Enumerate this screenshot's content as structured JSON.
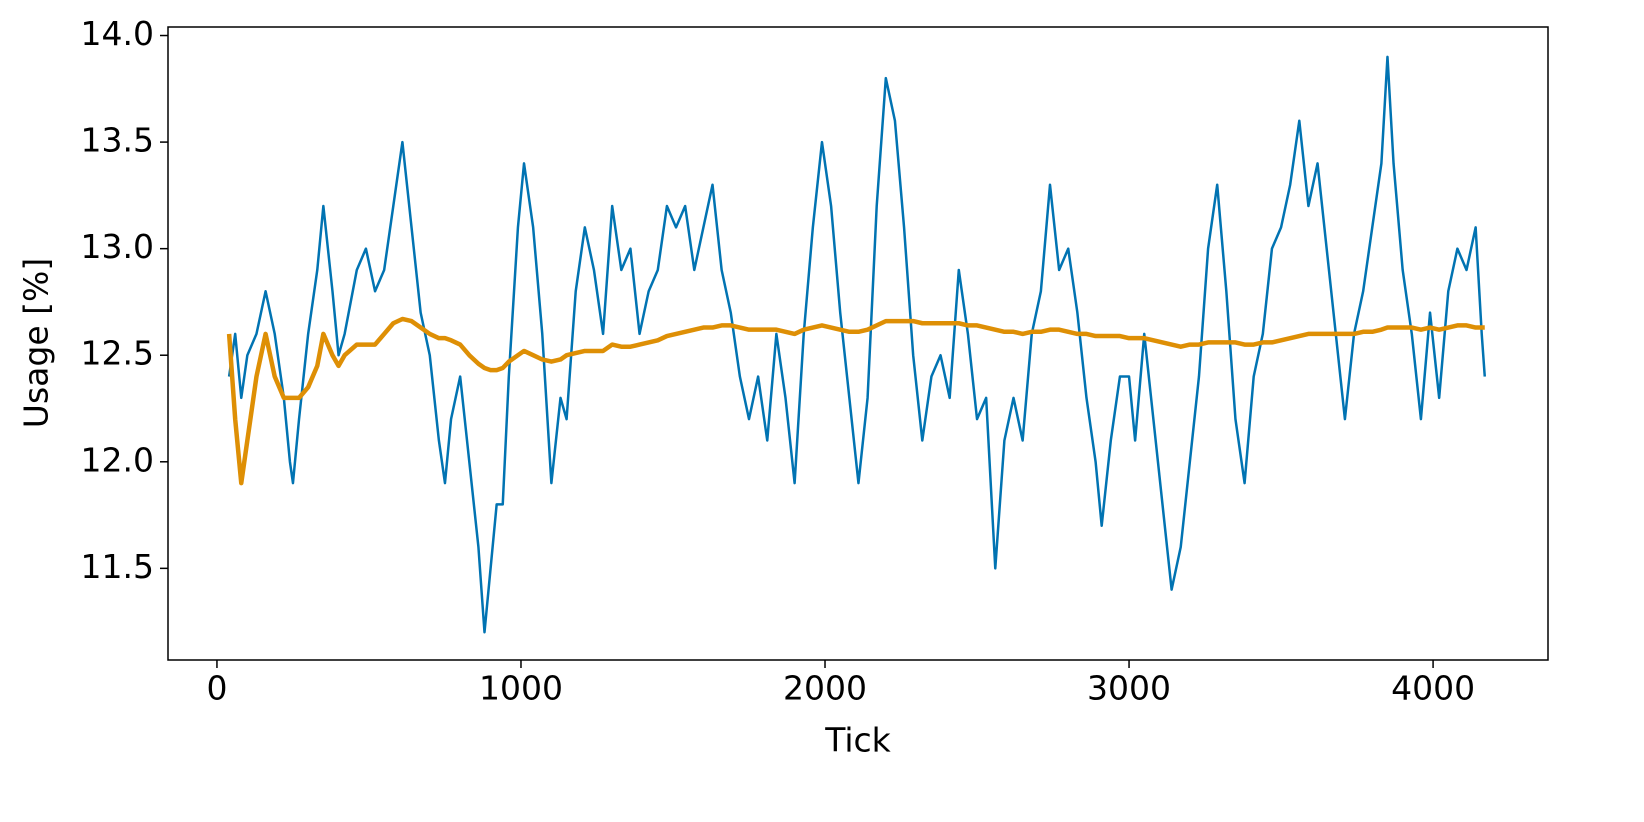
{
  "chart_data": {
    "type": "line",
    "x_label": "Tick",
    "y_label": "Usage [%]",
    "x": [
      40,
      60,
      80,
      100,
      130,
      160,
      190,
      220,
      240,
      250,
      270,
      300,
      330,
      350,
      380,
      400,
      420,
      460,
      490,
      520,
      550,
      580,
      610,
      640,
      670,
      700,
      730,
      750,
      770,
      800,
      830,
      860,
      880,
      900,
      920,
      940,
      960,
      990,
      1010,
      1040,
      1070,
      1100,
      1130,
      1150,
      1180,
      1210,
      1240,
      1270,
      1300,
      1330,
      1360,
      1390,
      1420,
      1450,
      1480,
      1510,
      1540,
      1570,
      1600,
      1630,
      1660,
      1690,
      1720,
      1750,
      1780,
      1810,
      1840,
      1870,
      1900,
      1930,
      1960,
      1990,
      2020,
      2050,
      2080,
      2110,
      2140,
      2170,
      2200,
      2230,
      2260,
      2290,
      2320,
      2350,
      2380,
      2410,
      2440,
      2470,
      2500,
      2530,
      2560,
      2590,
      2620,
      2650,
      2680,
      2710,
      2740,
      2770,
      2800,
      2830,
      2860,
      2890,
      2910,
      2940,
      2970,
      3000,
      3020,
      3050,
      3080,
      3110,
      3140,
      3170,
      3200,
      3230,
      3260,
      3290,
      3320,
      3350,
      3380,
      3410,
      3440,
      3470,
      3500,
      3530,
      3560,
      3590,
      3620,
      3650,
      3680,
      3710,
      3740,
      3770,
      3800,
      3830,
      3850,
      3870,
      3900,
      3930,
      3960,
      3990,
      4020,
      4050,
      4080,
      4110,
      4140,
      4160,
      4170
    ],
    "series": [
      {
        "color": "#0173b2",
        "width": 2.5,
        "values": [
          12.4,
          12.6,
          12.3,
          12.5,
          12.6,
          12.8,
          12.6,
          12.3,
          12.0,
          11.9,
          12.2,
          12.6,
          12.9,
          13.2,
          12.8,
          12.5,
          12.6,
          12.9,
          13.0,
          12.8,
          12.9,
          13.2,
          13.5,
          13.1,
          12.7,
          12.5,
          12.1,
          11.9,
          12.2,
          12.4,
          12.0,
          11.6,
          11.2,
          11.5,
          11.8,
          11.8,
          12.4,
          13.1,
          13.4,
          13.1,
          12.6,
          11.9,
          12.3,
          12.2,
          12.8,
          13.1,
          12.9,
          12.6,
          13.2,
          12.9,
          13.0,
          12.6,
          12.8,
          12.9,
          13.2,
          13.1,
          13.2,
          12.9,
          13.1,
          13.3,
          12.9,
          12.7,
          12.4,
          12.2,
          12.4,
          12.1,
          12.6,
          12.3,
          11.9,
          12.6,
          13.1,
          13.5,
          13.2,
          12.7,
          12.3,
          11.9,
          12.3,
          13.2,
          13.8,
          13.6,
          13.1,
          12.5,
          12.1,
          12.4,
          12.5,
          12.3,
          12.9,
          12.6,
          12.2,
          12.3,
          11.5,
          12.1,
          12.3,
          12.1,
          12.6,
          12.8,
          13.3,
          12.9,
          13.0,
          12.7,
          12.3,
          12.0,
          11.7,
          12.1,
          12.4,
          12.4,
          12.1,
          12.6,
          12.2,
          11.8,
          11.4,
          11.6,
          12.0,
          12.4,
          13.0,
          13.3,
          12.8,
          12.2,
          11.9,
          12.4,
          12.6,
          13.0,
          13.1,
          13.3,
          13.6,
          13.2,
          13.4,
          13.0,
          12.6,
          12.2,
          12.6,
          12.8,
          13.1,
          13.4,
          13.9,
          13.4,
          12.9,
          12.6,
          12.2,
          12.7,
          12.3,
          12.8,
          13.0,
          12.9,
          13.1,
          12.6,
          12.4
        ]
      },
      {
        "color": "#de8f05",
        "width": 4.5,
        "values": [
          12.6,
          12.2,
          11.9,
          12.1,
          12.4,
          12.6,
          12.4,
          12.3,
          12.3,
          12.3,
          12.3,
          12.35,
          12.45,
          12.6,
          12.5,
          12.45,
          12.5,
          12.55,
          12.55,
          12.55,
          12.6,
          12.65,
          12.67,
          12.66,
          12.63,
          12.6,
          12.58,
          12.58,
          12.57,
          12.55,
          12.5,
          12.46,
          12.44,
          12.43,
          12.43,
          12.44,
          12.47,
          12.5,
          12.52,
          12.5,
          12.48,
          12.47,
          12.48,
          12.5,
          12.51,
          12.52,
          12.52,
          12.52,
          12.55,
          12.54,
          12.54,
          12.55,
          12.56,
          12.57,
          12.59,
          12.6,
          12.61,
          12.62,
          12.63,
          12.63,
          12.64,
          12.64,
          12.63,
          12.62,
          12.62,
          12.62,
          12.62,
          12.61,
          12.6,
          12.62,
          12.63,
          12.64,
          12.63,
          12.62,
          12.61,
          12.61,
          12.62,
          12.64,
          12.66,
          12.66,
          12.66,
          12.66,
          12.65,
          12.65,
          12.65,
          12.65,
          12.65,
          12.64,
          12.64,
          12.63,
          12.62,
          12.61,
          12.61,
          12.6,
          12.61,
          12.61,
          12.62,
          12.62,
          12.61,
          12.6,
          12.6,
          12.59,
          12.59,
          12.59,
          12.59,
          12.58,
          12.58,
          12.58,
          12.57,
          12.56,
          12.55,
          12.54,
          12.55,
          12.55,
          12.56,
          12.56,
          12.56,
          12.56,
          12.55,
          12.55,
          12.56,
          12.56,
          12.57,
          12.58,
          12.59,
          12.6,
          12.6,
          12.6,
          12.6,
          12.6,
          12.6,
          12.61,
          12.61,
          12.62,
          12.63,
          12.63,
          12.63,
          12.63,
          12.62,
          12.63,
          12.62,
          12.63,
          12.64,
          12.64,
          12.63,
          12.63,
          12.63
        ]
      }
    ],
    "xlim": [
      -161,
      4378
    ],
    "ylim": [
      11.07,
      14.04
    ],
    "xticks": [
      0,
      1000,
      2000,
      3000,
      4000
    ],
    "yticks": [
      {
        "value": 11.5,
        "label": "11.5"
      },
      {
        "value": 12,
        "label": "12.0"
      },
      12.5,
      {
        "value": 13,
        "label": "13.0"
      },
      13.5,
      {
        "value": 14,
        "label": "14.0"
      }
    ],
    "grid": false
  }
}
